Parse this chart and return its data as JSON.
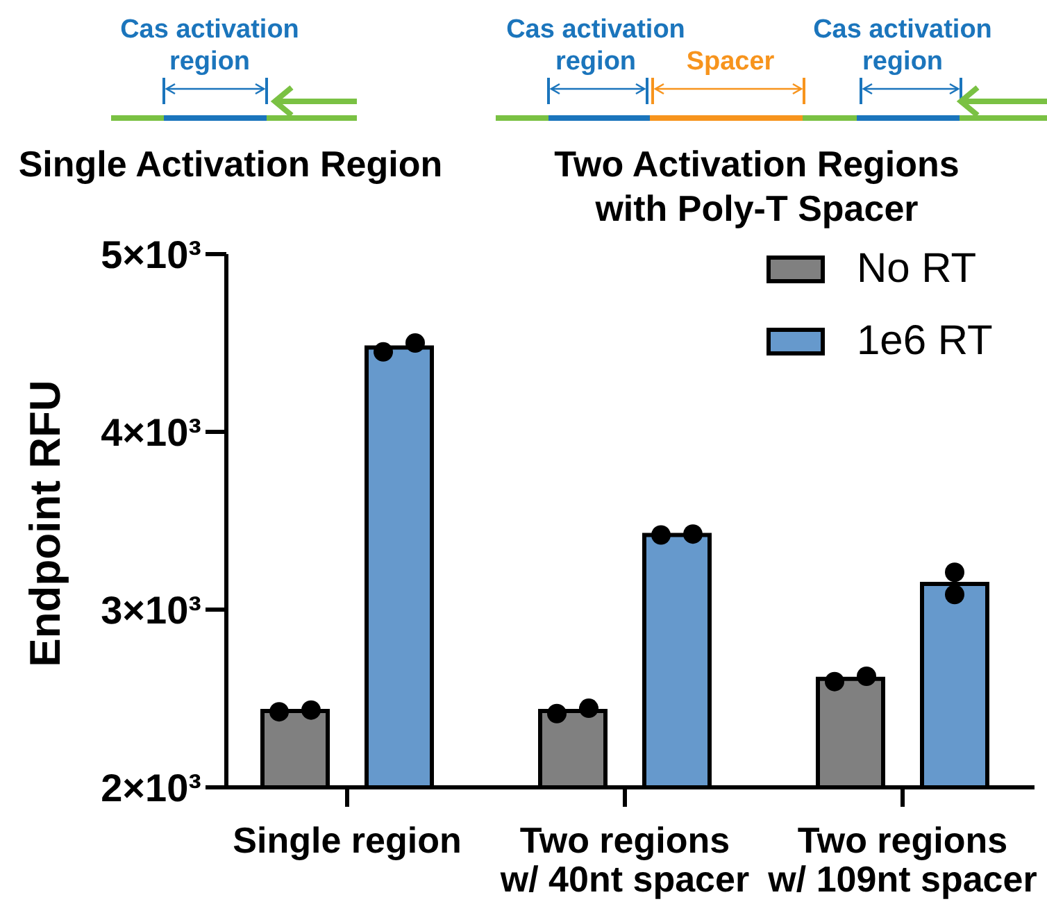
{
  "chart_data": {
    "type": "bar",
    "categories": [
      "Single region",
      "Two regions\nw/ 40nt spacer",
      "Two regions\nw/ 109nt spacer"
    ],
    "series": [
      {
        "name": "No RT",
        "color": "#808080",
        "values": [
          2430,
          2430,
          2610
        ]
      },
      {
        "name": "1e6 RT",
        "color": "#6699cc",
        "values": [
          4475,
          3420,
          3145
        ]
      },
      {
        "type": "scatter",
        "color": "#000000",
        "x": [
          "Single region",
          "Single region",
          "Two regions\nw/ 40nt spacer",
          "Two regions\nw/ 40nt spacer",
          "Two regions\nw/ 109nt spacer",
          "Two regions\nw/ 109nt spacer"
        ],
        "values": [
          2425,
          2435,
          2415,
          2445,
          2595,
          2625
        ]
      },
      {
        "type": "scatter",
        "color": "#000000",
        "x": [
          "Single region",
          "Single region",
          "Two regions\nw/ 40nt spacer",
          "Two regions\nw/ 40nt spacer",
          "Two regions\nw/ 109nt spacer",
          "Two regions\nw/ 109nt spacer"
        ],
        "values": [
          4450,
          4500,
          3420,
          3425,
          3210,
          3085
        ]
      }
    ],
    "ylabel": "Endpoint RFU",
    "ylim": [
      2000,
      5000
    ],
    "yticks": [
      {
        "value": 2000,
        "label": "2×10³"
      },
      {
        "value": 3000,
        "label": "3×10³"
      },
      {
        "value": 4000,
        "label": "4×10³"
      },
      {
        "value": 5000,
        "label": "5×10³"
      }
    ],
    "legend": "top right",
    "marker": "circle",
    "annotations": [
      "Cas activation\nregion",
      "Single Activation Region",
      "Cas activation\nregion",
      "Spacer",
      "Cas activation\nregion",
      "Two Activation Regions\nwith Poly-T Spacer"
    ]
  }
}
